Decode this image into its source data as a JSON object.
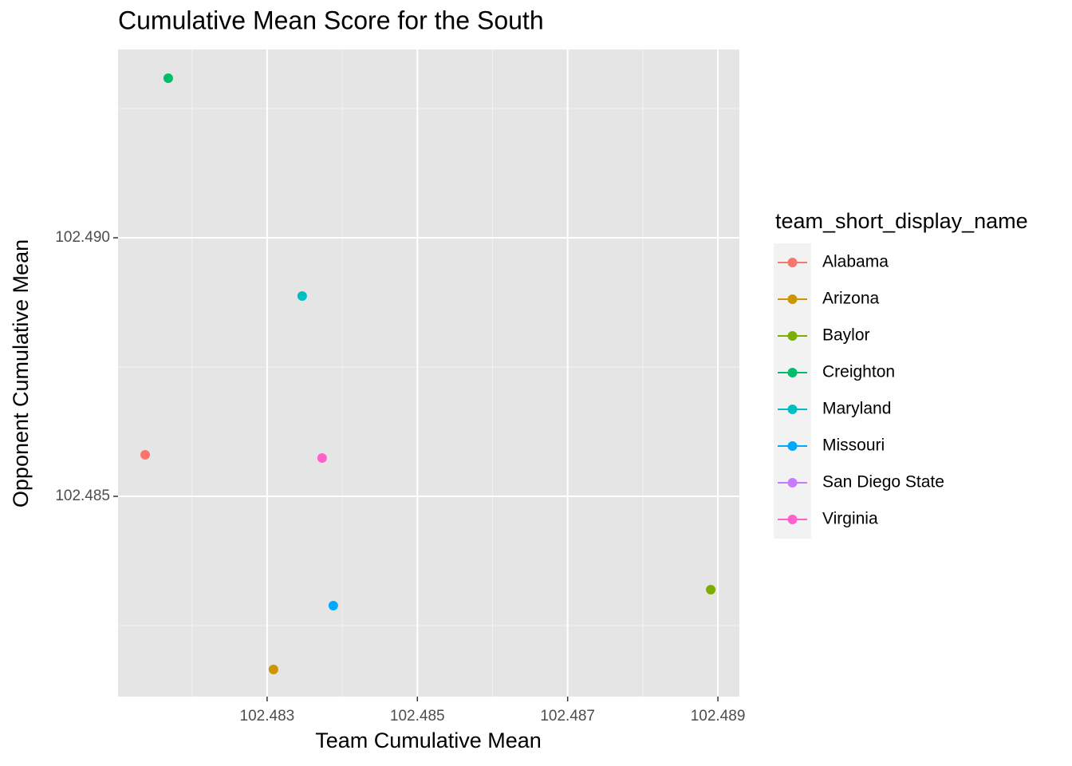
{
  "chart_data": {
    "type": "scatter",
    "title": "Cumulative Mean Score for the South",
    "x_label": "Team Cumulative Mean",
    "y_label": "Opponent Cumulative Mean",
    "legend_title": "team_short_display_name",
    "legend_position": "right",
    "grid": true,
    "xlim": [
      102.481016,
      102.489286
    ],
    "ylim": [
      102.481127,
      102.493642
    ],
    "xticks": [
      102.483,
      102.485,
      102.487,
      102.489
    ],
    "yticks": [
      102.485,
      {
        "value": 102.49,
        "label": "102.490"
      }
    ],
    "series": [
      {
        "name": "Alabama",
        "color": "#F8766D",
        "x": [
          102.481377
        ],
        "values": [
          102.485802
        ]
      },
      {
        "name": "Arizona",
        "color": "#CD9600",
        "x": [
          102.483085
        ],
        "values": [
          102.481651
        ]
      },
      {
        "name": "Baylor",
        "color": "#7CAE00",
        "x": [
          102.488905
        ],
        "values": [
          102.483194
        ]
      },
      {
        "name": "Creighton",
        "color": "#00BE67",
        "x": [
          102.481684
        ],
        "values": [
          102.493086
        ]
      },
      {
        "name": "Maryland",
        "color": "#00BFC4",
        "x": [
          102.483467
        ],
        "values": [
          102.488873
        ]
      },
      {
        "name": "Missouri",
        "color": "#00A9FF",
        "x": [
          102.483881
        ],
        "values": [
          102.482886
        ]
      },
      {
        "name": "San Diego State",
        "color": "#C77CFF",
        "x": [],
        "values": []
      },
      {
        "name": "Virginia",
        "color": "#FF61CC",
        "x": [
          102.483732
        ],
        "values": [
          102.485741
        ]
      }
    ]
  }
}
